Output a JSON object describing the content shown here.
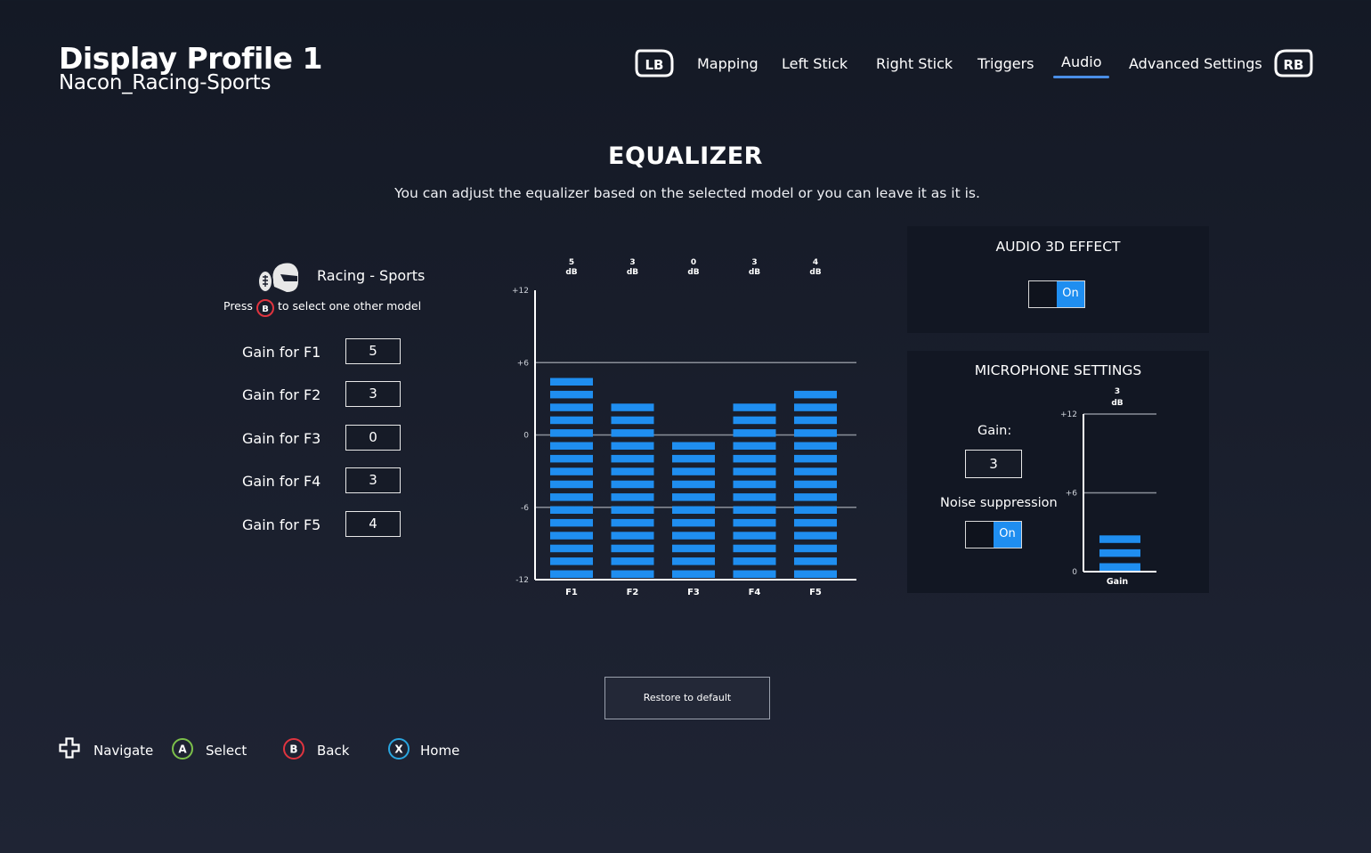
{
  "header": {
    "title": "Display Profile 1",
    "subtitle": "Nacon_Racing-Sports",
    "left_bumper": "LB",
    "right_bumper": "RB",
    "tabs": [
      {
        "label": "Mapping",
        "active": false
      },
      {
        "label": "Left Stick",
        "active": false
      },
      {
        "label": "Right Stick",
        "active": false
      },
      {
        "label": "Triggers",
        "active": false
      },
      {
        "label": "Audio",
        "active": true
      },
      {
        "label": "Advanced Settings",
        "active": false
      }
    ]
  },
  "equalizer": {
    "title": "EQUALIZER",
    "description": "You can adjust the equalizer based on the selected model or you can leave it as it is.",
    "model_name": "Racing - Sports",
    "press_prefix": "Press",
    "press_button": "B",
    "press_suffix": "to select one other model",
    "gains": [
      {
        "label": "Gain for F1",
        "value": "5"
      },
      {
        "label": "Gain for F2",
        "value": "3"
      },
      {
        "label": "Gain for F3",
        "value": "0"
      },
      {
        "label": "Gain for F4",
        "value": "3"
      },
      {
        "label": "Gain for F5",
        "value": "4"
      }
    ],
    "restore_label": "Restore to default"
  },
  "chart_data": [
    {
      "type": "bar",
      "categories": [
        "F1",
        "F2",
        "F3",
        "F4",
        "F5"
      ],
      "values": [
        5,
        3,
        0,
        3,
        4
      ],
      "value_unit": "dB",
      "yticks": [
        "+12",
        "+6",
        "0",
        "-6",
        "-12"
      ],
      "ylim": [
        -12,
        12
      ],
      "color": "#1f8ef0"
    },
    {
      "type": "bar",
      "categories": [
        "Gain"
      ],
      "values": [
        3
      ],
      "value_unit": "dB",
      "yticks": [
        "+12",
        "+6",
        "0"
      ],
      "ylim": [
        0,
        12
      ],
      "color": "#1f8ef0"
    }
  ],
  "audio3d": {
    "title": "AUDIO 3D EFFECT",
    "toggle_label": "On"
  },
  "microphone": {
    "title": "MICROPHONE SETTINGS",
    "gain_label": "Gain:",
    "gain_value": "3",
    "noise_label": "Noise suppression",
    "noise_toggle_label": "On"
  },
  "footer": {
    "hints": [
      {
        "button": "",
        "label": "Navigate",
        "icon": "dpad-icon"
      },
      {
        "button": "A",
        "label": "Select",
        "color": "#7cc04a"
      },
      {
        "button": "B",
        "label": "Back",
        "color": "#e0343f"
      },
      {
        "button": "X",
        "label": "Home",
        "color": "#2aa6e0"
      }
    ]
  }
}
